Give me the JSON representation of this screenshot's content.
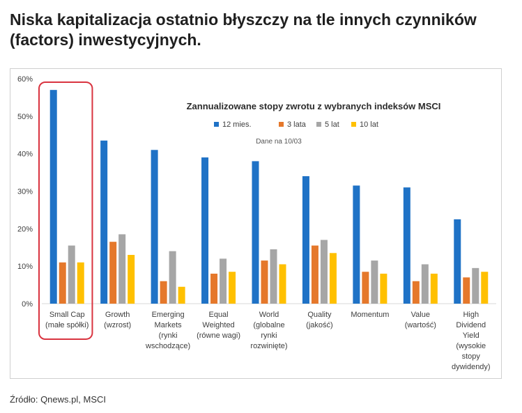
{
  "headline": "Niska kapitalizacja ostatnio błyszczy na tle innych czynników (factors) inwestycyjnych.",
  "source": "Źródło: Qnews.pl, MSCI",
  "colors": {
    "series": [
      "#1f72c6",
      "#e5782b",
      "#a6a6a6",
      "#ffc000"
    ],
    "highlight": "#d9333f",
    "axis": "#d9d9d9",
    "text": "#3d3d3d"
  },
  "chart_data": {
    "type": "bar",
    "title": "Zannualizowane stopy zwrotu z wybranych indeksów MSCI",
    "subtitle": "Dane na 10/03",
    "ylim": [
      0,
      60
    ],
    "yticks": [
      0,
      10,
      20,
      30,
      40,
      50,
      60
    ],
    "ytick_labels": [
      "0%",
      "10%",
      "20%",
      "30%",
      "40%",
      "50%",
      "60%"
    ],
    "legend_position": "top-center",
    "categories": [
      [
        "Small Cap",
        "(małe spółki)"
      ],
      [
        "Growth",
        "(wzrost)"
      ],
      [
        "Emerging",
        "Markets",
        "(rynki",
        "wschodzące)"
      ],
      [
        "Equal",
        "Weighted",
        "(równe wagi)"
      ],
      [
        "World",
        "(globalne",
        "rynki",
        "rozwinięte)"
      ],
      [
        "Quality",
        "(jakość)"
      ],
      [
        "Momentum"
      ],
      [
        "Value",
        "(wartość)"
      ],
      [
        "High",
        "Dividend",
        "Yield",
        "(wysokie",
        "stopy",
        "dywidendy)"
      ]
    ],
    "highlighted_category_index": 0,
    "series": [
      {
        "name": "12 mies.",
        "values": [
          57,
          43.5,
          41,
          39,
          38,
          34,
          31.5,
          31,
          22.5
        ]
      },
      {
        "name": "3 lata",
        "values": [
          11,
          16.5,
          6,
          8,
          11.5,
          15.5,
          8.5,
          6,
          7
        ]
      },
      {
        "name": "5 lat",
        "values": [
          15.5,
          18.5,
          14,
          12,
          14.5,
          17,
          11.5,
          10.5,
          9.5
        ]
      },
      {
        "name": "10 lat",
        "values": [
          11,
          13,
          4.5,
          8.5,
          10.5,
          13.5,
          8,
          8,
          8.5
        ]
      }
    ]
  }
}
